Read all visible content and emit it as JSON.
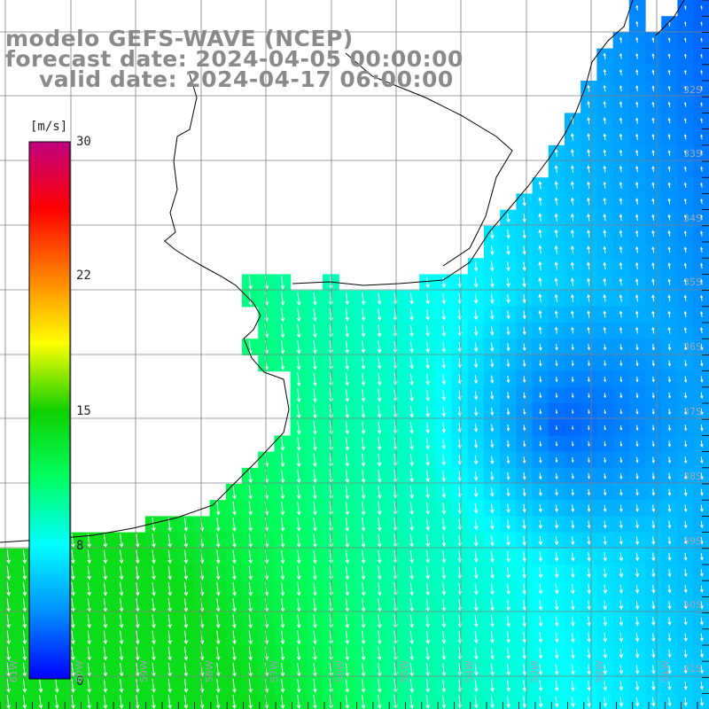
{
  "title": {
    "model": "modelo GEFS-WAVE (NCEP)",
    "forecast": "forecast date: 2024-04-05 00:00:00",
    "valid": "valid date: 2024-04-17 06:00:00"
  },
  "colorbar": {
    "unit": "[m/s]",
    "ticks": [
      "30",
      "22",
      "15",
      "8",
      "0"
    ],
    "tick_values": [
      30,
      22,
      15,
      8,
      0
    ],
    "range": [
      0,
      30
    ],
    "colors": [
      "#0000ff",
      "#0090ff",
      "#00ffff",
      "#00ff60",
      "#10d000",
      "#ffff00",
      "#ff8000",
      "#ff0000",
      "#c00080"
    ]
  },
  "lat_labels": [
    "32S",
    "33S",
    "34S",
    "35S",
    "36S",
    "37S",
    "38S",
    "39S",
    "40S",
    "41S"
  ],
  "lon_labels": [
    "61W",
    "60W",
    "59W",
    "58W",
    "57W",
    "56W",
    "55W",
    "54W",
    "53W",
    "52W",
    "51W"
  ],
  "colors": {
    "land": "#ffffff",
    "grid": "#808080",
    "coast": "#000000",
    "arrow": "#ffffff"
  }
}
